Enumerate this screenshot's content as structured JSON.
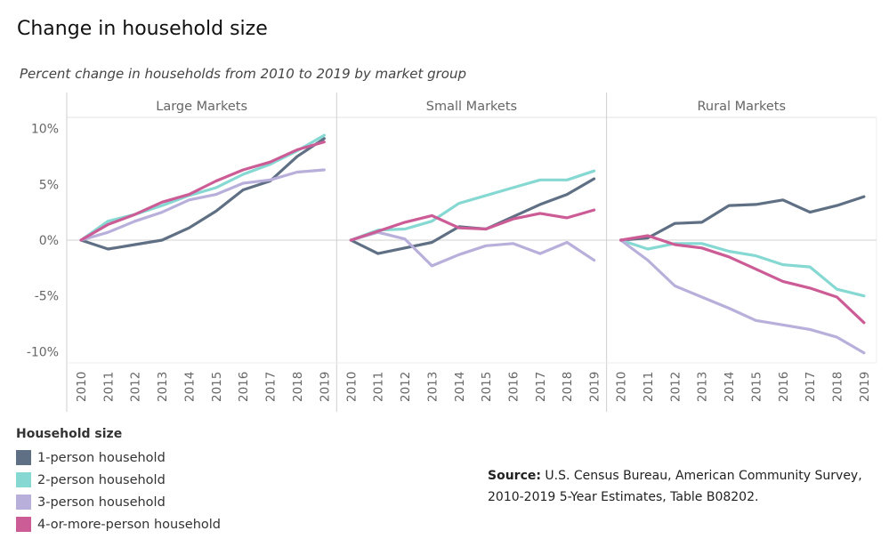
{
  "title": "Change in household size",
  "subtitle": "Percent change in households from 2010 to 2019 by market group",
  "legend": {
    "title": "Household size",
    "items": [
      {
        "label": "1-person household",
        "color": "#5f6f84"
      },
      {
        "label": "2-person household",
        "color": "#86d8d2"
      },
      {
        "label": "3-person household",
        "color": "#b8b0db"
      },
      {
        "label": "4-or-more-person household",
        "color": "#cc5c96"
      }
    ]
  },
  "source": {
    "label": "Source:",
    "line1": "U.S. Census Bureau, American Community Survey,",
    "line2": "2010-2019 5-Year Estimates, Table B08202."
  },
  "chart_data": {
    "type": "line",
    "ylim": [
      -11,
      11
    ],
    "y_ticks": [
      10,
      5,
      0,
      -5,
      -10
    ],
    "y_tick_labels": [
      "10%",
      "5%",
      "0%",
      "-5%",
      "-10%"
    ],
    "x": [
      "2010",
      "2011",
      "2012",
      "2013",
      "2014",
      "2015",
      "2016",
      "2017",
      "2018",
      "2019"
    ],
    "panels": [
      {
        "name": "Large Markets",
        "series": [
          {
            "name": "1-person household",
            "values": [
              0,
              -0.8,
              -0.4,
              0,
              1.1,
              2.6,
              4.5,
              5.3,
              7.5,
              9.1
            ]
          },
          {
            "name": "2-person household",
            "values": [
              0,
              1.7,
              2.3,
              3.1,
              4.0,
              4.7,
              5.9,
              6.8,
              8.0,
              9.4
            ]
          },
          {
            "name": "3-person household",
            "values": [
              0,
              0.7,
              1.7,
              2.5,
              3.6,
              4.1,
              5.1,
              5.4,
              6.1,
              6.3
            ]
          },
          {
            "name": "4-or-more-person household",
            "values": [
              0,
              1.4,
              2.3,
              3.4,
              4.1,
              5.3,
              6.3,
              7.0,
              8.1,
              8.8
            ]
          }
        ]
      },
      {
        "name": "Small Markets",
        "series": [
          {
            "name": "1-person household",
            "values": [
              0,
              -1.2,
              -0.7,
              -0.2,
              1.2,
              1.0,
              2.1,
              3.2,
              4.1,
              5.5
            ]
          },
          {
            "name": "2-person household",
            "values": [
              0,
              0.9,
              1.0,
              1.7,
              3.3,
              4.0,
              4.7,
              5.4,
              5.4,
              6.2
            ]
          },
          {
            "name": "3-person household",
            "values": [
              0,
              0.7,
              0.1,
              -2.3,
              -1.3,
              -0.5,
              -0.3,
              -1.2,
              -0.2,
              -1.8
            ]
          },
          {
            "name": "4-or-more-person household",
            "values": [
              0,
              0.8,
              1.6,
              2.2,
              1.1,
              1.0,
              1.9,
              2.4,
              2.0,
              2.7
            ]
          }
        ]
      },
      {
        "name": "Rural Markets",
        "series": [
          {
            "name": "1-person household",
            "values": [
              0,
              0.2,
              1.5,
              1.6,
              3.1,
              3.2,
              3.6,
              2.5,
              3.1,
              3.9
            ]
          },
          {
            "name": "2-person household",
            "values": [
              0,
              -0.8,
              -0.3,
              -0.3,
              -1.0,
              -1.4,
              -2.2,
              -2.4,
              -4.4,
              -5.0
            ]
          },
          {
            "name": "3-person household",
            "values": [
              0,
              -1.8,
              -4.1,
              -5.1,
              -6.1,
              -7.2,
              -7.6,
              -8.0,
              -8.7,
              -10.1
            ]
          },
          {
            "name": "4-or-more-person household",
            "values": [
              0,
              0.4,
              -0.4,
              -0.7,
              -1.5,
              -2.6,
              -3.7,
              -4.3,
              -5.1,
              -7.4
            ]
          }
        ]
      }
    ]
  }
}
